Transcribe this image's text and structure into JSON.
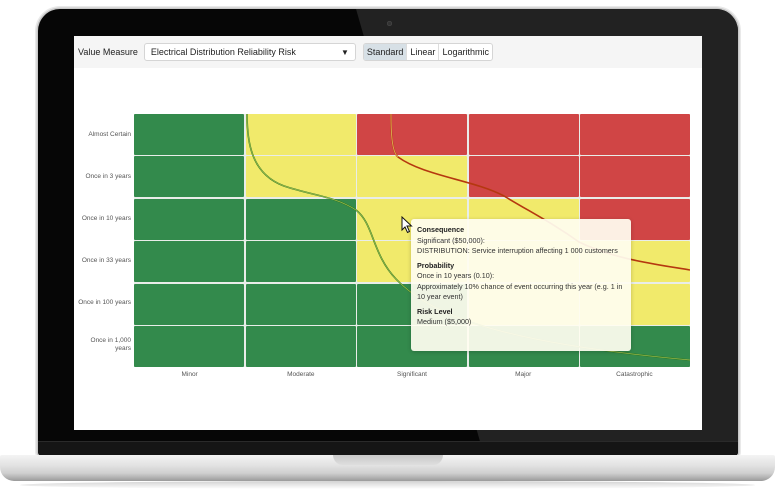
{
  "toolbar": {
    "value_measure_label": "Value Measure",
    "value_measure_selected": "Electrical Distribution Reliability Risk",
    "dropdown_icon": "chevron-down-icon",
    "scale_options": [
      {
        "label": "Standard",
        "active": true
      },
      {
        "label": "Linear",
        "active": false
      },
      {
        "label": "Logarithmic",
        "active": false
      }
    ]
  },
  "colors": {
    "low": "#338a4c",
    "medium": "#f1ea6b",
    "high": "#d04545",
    "curve_low": "#2f7a1f",
    "curve_high": "#b5380f"
  },
  "matrix": {
    "probability_labels": [
      "Almost Certain",
      "Once in 3 years",
      "Once in 10 years",
      "Once in 33 years",
      "Once in 100 years",
      "Once in 1,000 years"
    ],
    "consequence_labels": [
      "Minor",
      "Moderate",
      "Significant",
      "Major",
      "Catastrophic"
    ],
    "cells": [
      [
        "low",
        "medium",
        "high",
        "high",
        "high"
      ],
      [
        "low",
        "medium",
        "medium",
        "high",
        "high"
      ],
      [
        "low",
        "low",
        "medium",
        "medium",
        "high"
      ],
      [
        "low",
        "low",
        "medium",
        "medium",
        "medium"
      ],
      [
        "low",
        "low",
        "low",
        "medium",
        "medium"
      ],
      [
        "low",
        "low",
        "low",
        "low",
        "low"
      ]
    ]
  },
  "tooltip": {
    "consequence_heading": "Consequence",
    "consequence_value": "Significant ($50,000):",
    "consequence_desc": "DISTRIBUTION: Service interruption affecting 1 000 customers",
    "probability_heading": "Probability",
    "probability_value": "Once in 10 years (0.10):",
    "probability_desc": "Approximately 10% chance of event occurring this year (e.g. 1 in 10 year event)",
    "risk_heading": "Risk Level",
    "risk_value": "Medium ($5,000)"
  }
}
